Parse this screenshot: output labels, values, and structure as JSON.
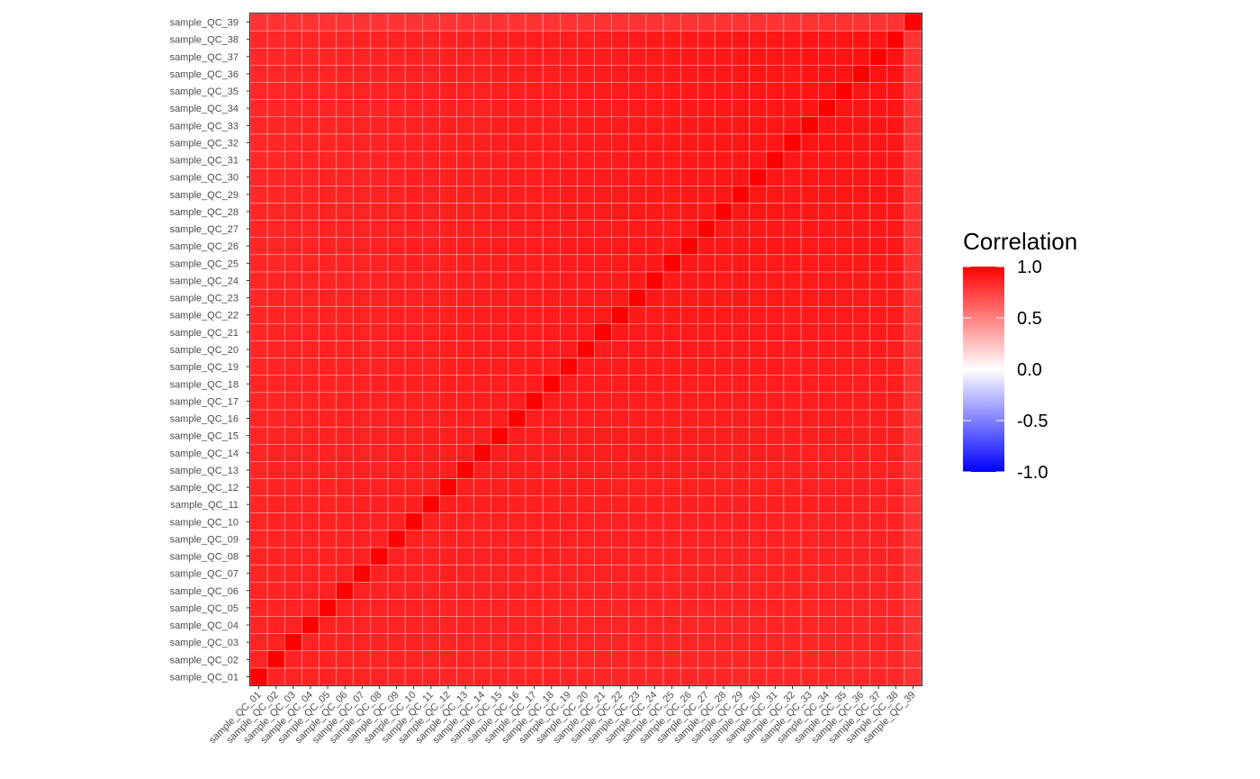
{
  "chart_data": {
    "type": "heatmap",
    "title": "",
    "xlabel": "",
    "ylabel": "",
    "samples": [
      "sample_QC_01",
      "sample_QC_02",
      "sample_QC_03",
      "sample_QC_04",
      "sample_QC_05",
      "sample_QC_06",
      "sample_QC_07",
      "sample_QC_08",
      "sample_QC_09",
      "sample_QC_10",
      "sample_QC_11",
      "sample_QC_12",
      "sample_QC_13",
      "sample_QC_14",
      "sample_QC_15",
      "sample_QC_16",
      "sample_QC_17",
      "sample_QC_18",
      "sample_QC_19",
      "sample_QC_20",
      "sample_QC_21",
      "sample_QC_22",
      "sample_QC_23",
      "sample_QC_24",
      "sample_QC_25",
      "sample_QC_26",
      "sample_QC_27",
      "sample_QC_28",
      "sample_QC_29",
      "sample_QC_30",
      "sample_QC_31",
      "sample_QC_32",
      "sample_QC_33",
      "sample_QC_34",
      "sample_QC_35",
      "sample_QC_36",
      "sample_QC_37",
      "sample_QC_38",
      "sample_QC_39"
    ],
    "diagonal_value": 1.0,
    "off_diagonal_typical_range": [
      0.82,
      0.94
    ],
    "last_sample_off_diagonal_approx": 0.8,
    "legend": {
      "title": "Correlation",
      "limits": [
        -1.0,
        1.0
      ],
      "breaks": [
        1.0,
        0.5,
        0.0,
        -0.5,
        -1.0
      ],
      "break_labels": [
        "1.0",
        "0.5",
        "0.0",
        "-0.5",
        "-1.0"
      ],
      "placement": "right"
    },
    "colors": {
      "low": "#0000ff",
      "mid": "#ffffff",
      "high": "#ff0000",
      "cell_border": "#ffffff"
    }
  }
}
